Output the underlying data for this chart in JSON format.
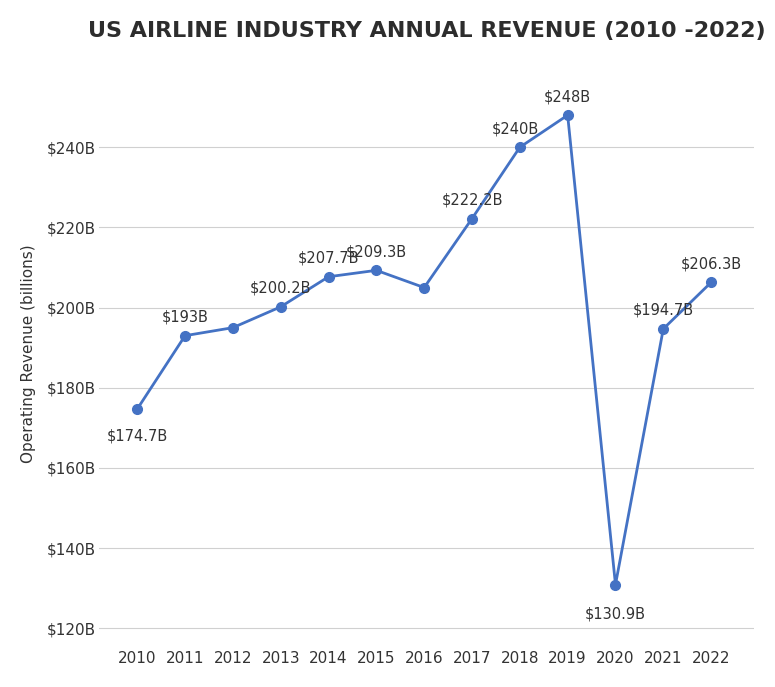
{
  "title": "US AIRLINE INDUSTRY ANNUAL REVENUE (2010 -2022)",
  "ylabel": "Operating Revenue (billions)",
  "years": [
    2010,
    2011,
    2012,
    2013,
    2014,
    2015,
    2016,
    2017,
    2018,
    2019,
    2020,
    2021,
    2022
  ],
  "values": [
    174.7,
    193.0,
    195.0,
    200.2,
    207.7,
    209.3,
    205.0,
    222.2,
    240.0,
    248.0,
    130.9,
    194.7,
    206.3
  ],
  "labels": [
    "$174.7B",
    "$193B",
    "",
    "$200.2B",
    "$207.7B",
    "$209.3B",
    "",
    "$222.2B",
    "$240B",
    "$248B",
    "$130.9B",
    "$194.7B",
    "$206.3B"
  ],
  "label_offsets_x": [
    0,
    0,
    0,
    0,
    0,
    0,
    0,
    0,
    -0.1,
    0,
    0,
    0,
    0
  ],
  "label_offsets_y": [
    -14,
    8,
    0,
    8,
    8,
    8,
    0,
    8,
    8,
    8,
    -16,
    8,
    8
  ],
  "line_color": "#4472C4",
  "marker_color": "#4472C4",
  "label_color": "#333333",
  "bg_color": "#ffffff",
  "title_color": "#2d2d2d",
  "axis_tick_color": "#333333",
  "ylim_min": 115,
  "ylim_max": 262,
  "yticks": [
    120,
    140,
    160,
    180,
    200,
    220,
    240
  ],
  "ytick_labels": [
    "$120B",
    "$140B",
    "$160B",
    "$180B",
    "$200B",
    "$220B",
    "$240B"
  ],
  "title_fontsize": 16,
  "label_fontsize": 10.5,
  "axis_fontsize": 11,
  "ylabel_fontsize": 11,
  "xlim_min": 2009.2,
  "xlim_max": 2022.9
}
